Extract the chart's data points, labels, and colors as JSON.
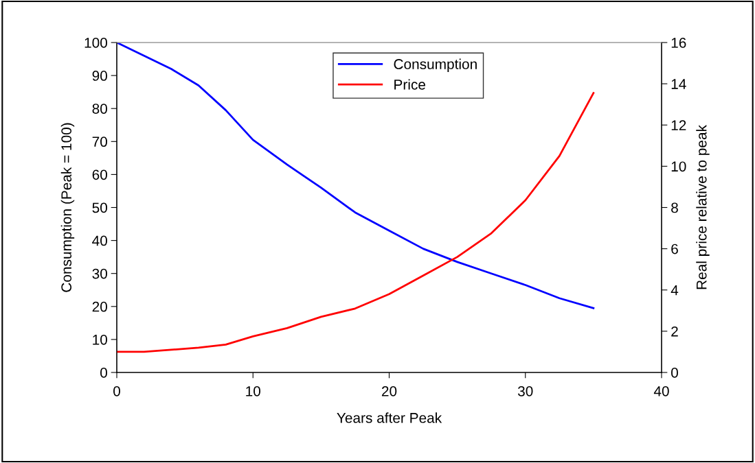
{
  "chart_data": {
    "type": "line",
    "xlabel": "Years after Peak",
    "ylabel": "Consumption (Peak = 100)",
    "y2label": "Real price relative to peak",
    "x": [
      0,
      2,
      4,
      6,
      8,
      10,
      12.5,
      15,
      17.5,
      20,
      22.5,
      25,
      27.5,
      30,
      32.5,
      35
    ],
    "series": [
      {
        "name": "Consumption",
        "color": "#0000ff",
        "values": [
          100,
          96,
          92,
          87,
          79.5,
          70.5,
          63,
          56,
          48.5,
          43,
          37.5,
          33.5,
          30,
          26.5,
          22.5,
          19.5
        ]
      },
      {
        "name": "Price",
        "color": "#ff0000",
        "axis": "y2",
        "values": [
          1.0,
          1.0,
          1.1,
          1.2,
          1.35,
          1.75,
          2.15,
          2.7,
          3.1,
          3.8,
          4.7,
          5.6,
          6.75,
          8.35,
          10.5,
          13.55
        ]
      }
    ],
    "xlim": [
      0,
      40
    ],
    "xticks": [
      0,
      10,
      20,
      30,
      40
    ],
    "ylim": [
      0,
      100
    ],
    "yticks": [
      0,
      10,
      20,
      30,
      40,
      50,
      60,
      70,
      80,
      90,
      100
    ],
    "y2lim": [
      0,
      16
    ],
    "y2ticks": [
      0,
      2,
      4,
      6,
      8,
      10,
      12,
      14,
      16
    ],
    "legend": "top",
    "grid": false,
    "marker": "none",
    "line_style": "solid"
  }
}
